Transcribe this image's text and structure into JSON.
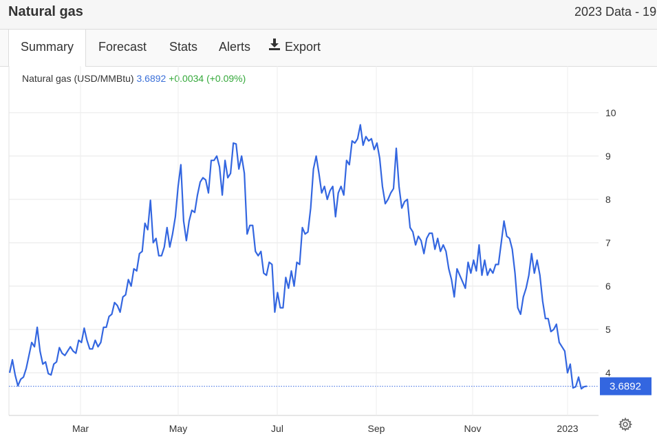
{
  "header": {
    "title": "Natural gas",
    "subtitle": "2023 Data - 19"
  },
  "tabs": [
    {
      "label": "Summary",
      "active": true
    },
    {
      "label": "Forecast",
      "active": false
    },
    {
      "label": "Stats",
      "active": false
    },
    {
      "label": "Alerts",
      "active": false
    },
    {
      "label": "Export",
      "active": false,
      "icon": "download-icon"
    }
  ],
  "legend": {
    "name": "Natural gas (USD/MMBtu)",
    "value": "3.6892",
    "change": "+0.0034 (+0.09%)"
  },
  "current_label": "3.6892",
  "settings_icon": "gear-icon",
  "colors": {
    "line": "#3366e0",
    "up": "#35a93b",
    "value": "#3a6fd8",
    "grid": "#e6e6e6"
  },
  "chart_data": {
    "type": "line",
    "title": "",
    "xlabel": "",
    "ylabel": "",
    "x_ticks": [
      "Mar",
      "May",
      "Jul",
      "Sep",
      "Nov",
      "2023"
    ],
    "y_ticks": [
      4,
      5,
      6,
      7,
      8,
      9,
      10
    ],
    "ylim": [
      3.0,
      10.3
    ],
    "grid": true,
    "current_value": 3.6892,
    "series": [
      {
        "values": [
          4.0,
          4.3,
          3.95,
          3.7,
          3.85,
          3.9,
          4.1,
          4.4,
          4.7,
          4.6,
          5.05,
          4.5,
          4.2,
          4.25,
          3.98,
          3.95,
          4.2,
          4.25,
          4.58,
          4.45,
          4.4,
          4.5,
          4.6,
          4.5,
          4.45,
          4.75,
          4.7,
          5.03,
          4.75,
          4.55,
          4.55,
          4.75,
          4.6,
          4.7,
          5.05,
          5.05,
          5.3,
          5.35,
          5.62,
          5.55,
          5.4,
          5.75,
          5.8,
          6.15,
          6.0,
          6.4,
          6.35,
          6.75,
          6.8,
          7.45,
          7.3,
          7.98,
          7.0,
          7.1,
          6.7,
          6.7,
          6.9,
          7.35,
          6.9,
          7.2,
          7.6,
          8.3,
          8.8,
          7.5,
          7.05,
          7.5,
          7.75,
          7.7,
          8.1,
          8.4,
          8.5,
          8.45,
          8.15,
          8.9,
          8.9,
          9.0,
          8.75,
          8.1,
          8.9,
          8.5,
          8.6,
          9.3,
          9.28,
          8.7,
          9.0,
          8.6,
          7.2,
          7.4,
          7.4,
          6.8,
          6.7,
          6.8,
          6.3,
          6.25,
          6.55,
          6.5,
          5.4,
          5.85,
          5.5,
          5.5,
          6.2,
          5.95,
          6.35,
          6.0,
          6.55,
          6.5,
          7.35,
          7.2,
          7.25,
          7.8,
          8.7,
          9.0,
          8.6,
          8.15,
          8.3,
          8.0,
          8.2,
          8.3,
          7.6,
          8.15,
          8.3,
          8.1,
          8.9,
          8.8,
          9.35,
          9.3,
          9.4,
          9.72,
          9.25,
          9.45,
          9.35,
          9.4,
          9.15,
          9.3,
          8.95,
          8.3,
          7.9,
          8.0,
          8.15,
          8.25,
          9.18,
          8.3,
          7.8,
          7.95,
          8.0,
          7.35,
          7.25,
          6.95,
          7.15,
          7.05,
          6.75,
          7.1,
          7.22,
          7.22,
          6.85,
          7.1,
          6.8,
          6.95,
          6.8,
          6.4,
          6.15,
          5.75,
          6.4,
          6.25,
          6.1,
          5.95,
          6.55,
          6.3,
          6.6,
          6.35,
          6.95,
          6.25,
          6.6,
          6.25,
          6.4,
          6.3,
          6.5,
          6.5,
          7.0,
          7.5,
          7.15,
          7.1,
          6.85,
          6.3,
          5.5,
          5.35,
          5.75,
          5.95,
          6.25,
          6.75,
          6.3,
          6.6,
          6.25,
          5.65,
          5.25,
          5.25,
          4.95,
          5.0,
          5.12,
          4.7,
          4.6,
          4.5,
          4.0,
          4.2,
          3.65,
          3.68,
          3.9,
          3.63,
          3.68,
          3.69
        ]
      }
    ]
  }
}
